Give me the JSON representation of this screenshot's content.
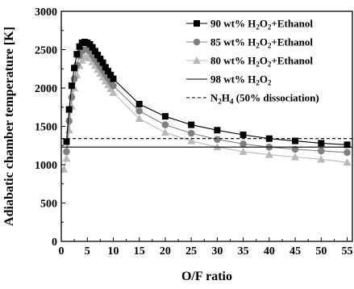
{
  "chart_data": {
    "type": "line",
    "xlabel": "O/F ratio",
    "ylabel": "Adiabatic chamber temperature [K]",
    "xlim": [
      0,
      56
    ],
    "ylim": [
      0,
      3000
    ],
    "x_ticks": [
      0,
      5,
      10,
      15,
      20,
      25,
      30,
      35,
      40,
      45,
      50,
      55
    ],
    "y_ticks": [
      0,
      500,
      1000,
      1500,
      2000,
      2500,
      3000
    ],
    "grid": false,
    "legend_position": "top-right",
    "series": [
      {
        "name": "90 wt% H2O2+Ethanol",
        "label_parts": [
          "90 wt% H",
          "2",
          "O",
          "2",
          "+Ethanol"
        ],
        "color": "#000000",
        "marker": "square",
        "line": "solid",
        "x": [
          1,
          1.5,
          2,
          2.5,
          3,
          3.5,
          4,
          4.5,
          5,
          5.5,
          6,
          6.5,
          7,
          7.5,
          8,
          8.5,
          9,
          9.5,
          10,
          15,
          20,
          25,
          30,
          35,
          40,
          45,
          50,
          55
        ],
        "y": [
          1300,
          1720,
          2030,
          2260,
          2440,
          2540,
          2590,
          2600,
          2590,
          2570,
          2530,
          2480,
          2430,
          2380,
          2330,
          2270,
          2220,
          2170,
          2120,
          1790,
          1630,
          1520,
          1450,
          1390,
          1340,
          1310,
          1280,
          1260
        ]
      },
      {
        "name": "85 wt% H2O2+Ethanol",
        "label_parts": [
          "85 wt% H",
          "2",
          "O",
          "2",
          "+Ethanol"
        ],
        "color": "#808080",
        "marker": "circle",
        "line": "solid",
        "x": [
          1,
          1.5,
          2,
          2.5,
          3,
          3.5,
          4,
          4.5,
          5,
          5.5,
          6,
          6.5,
          7,
          7.5,
          8,
          8.5,
          9,
          9.5,
          10,
          15,
          20,
          25,
          30,
          35,
          40,
          45,
          50,
          55
        ],
        "y": [
          1170,
          1570,
          1880,
          2120,
          2300,
          2420,
          2480,
          2500,
          2500,
          2480,
          2430,
          2380,
          2330,
          2280,
          2230,
          2180,
          2130,
          2080,
          2030,
          1700,
          1520,
          1410,
          1330,
          1270,
          1230,
          1200,
          1180,
          1160
        ]
      },
      {
        "name": "80 wt% H2O2+Ethanol",
        "label_parts": [
          "80 wt% H",
          "2",
          "O",
          "2",
          "+Ethanol"
        ],
        "color": "#b8b8b8",
        "marker": "triangle",
        "line": "solid",
        "x": [
          0.5,
          1,
          1.5,
          2,
          2.5,
          3,
          3.5,
          4,
          4.5,
          5,
          5.5,
          6,
          6.5,
          7,
          7.5,
          8,
          8.5,
          9,
          9.5,
          10,
          15,
          20,
          25,
          30,
          35,
          40,
          45,
          50,
          55
        ],
        "y": [
          940,
          1080,
          1450,
          1760,
          2000,
          2170,
          2290,
          2360,
          2400,
          2410,
          2390,
          2340,
          2290,
          2240,
          2190,
          2140,
          2090,
          2040,
          1990,
          1940,
          1600,
          1420,
          1310,
          1230,
          1170,
          1130,
          1100,
          1070,
          1030
        ]
      },
      {
        "name": "98 wt% H2O2",
        "label_parts": [
          "98 wt% H",
          "2",
          "O",
          "2",
          ""
        ],
        "color": "#000000",
        "marker": "none",
        "line": "solid",
        "x": [
          0,
          56
        ],
        "y": [
          1230,
          1230
        ]
      },
      {
        "name": "N2H4 (50% dissociation)",
        "label_parts": [
          "N",
          "2",
          "H",
          "4",
          " (50% dissociation)"
        ],
        "color": "#000000",
        "marker": "none",
        "line": "dashed",
        "x": [
          0,
          56
        ],
        "y": [
          1340,
          1340
        ]
      }
    ]
  }
}
